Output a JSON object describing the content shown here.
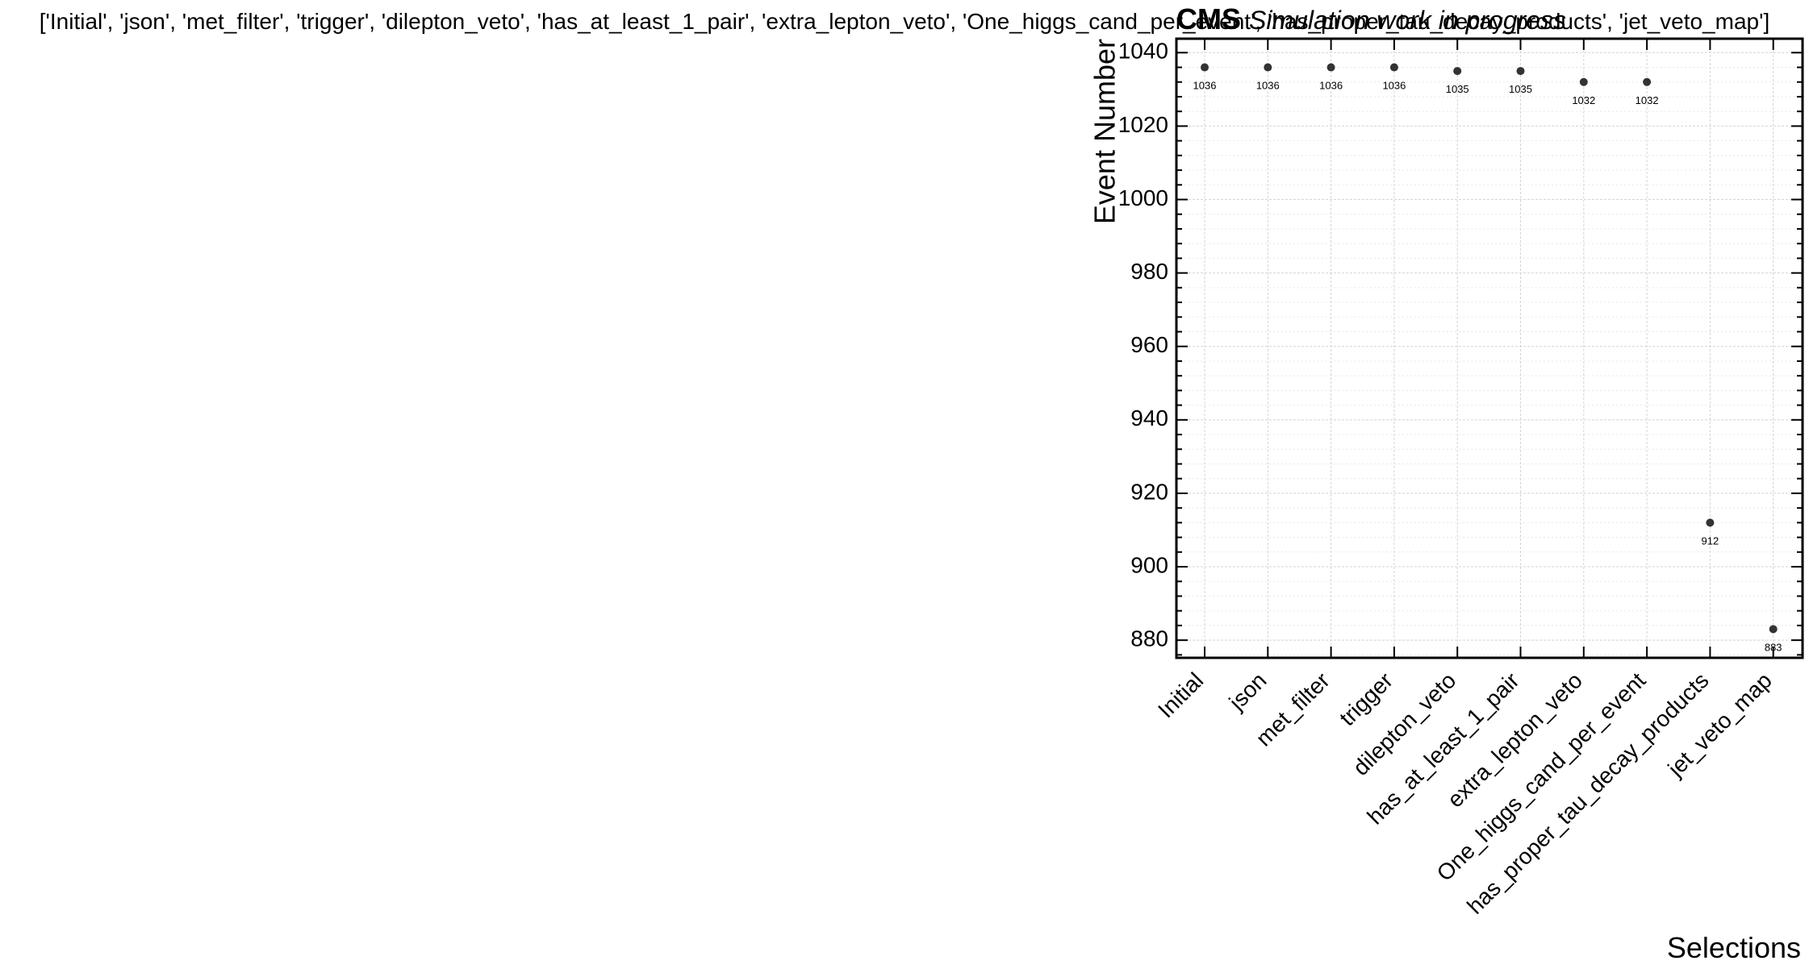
{
  "chart_data": {
    "type": "scatter",
    "title": "['Initial', 'json', 'met_filter', 'trigger', 'dilepton_veto', 'has_at_least_1_pair', 'extra_lepton_veto', 'One_higgs_cand_per_event', 'has_proper_tau_decay_products', 'jet_veto_map']",
    "experiment_label": "CMS",
    "status_label": "Simulation work in progress",
    "xlabel": "Selections",
    "ylabel": "Event Number",
    "categories": [
      "Initial",
      "json",
      "met_filter",
      "trigger",
      "dilepton_veto",
      "has_at_least_1_pair",
      "extra_lepton_veto",
      "One_higgs_cand_per_event",
      "has_proper_tau_decay_products",
      "jet_veto_map"
    ],
    "values": [
      1036,
      1036,
      1036,
      1036,
      1035,
      1035,
      1032,
      1032,
      912,
      883
    ],
    "point_labels": [
      "1036",
      "1036",
      "1036",
      "1036",
      "1035",
      "1035",
      "1032",
      "1032",
      "912",
      "883"
    ],
    "ylim": [
      875.2,
      1043.8
    ],
    "yticks": [
      880,
      900,
      920,
      940,
      960,
      980,
      1000,
      1020,
      1040
    ],
    "y_minor_step": 4,
    "grid": true,
    "marker_color": "#333333"
  }
}
